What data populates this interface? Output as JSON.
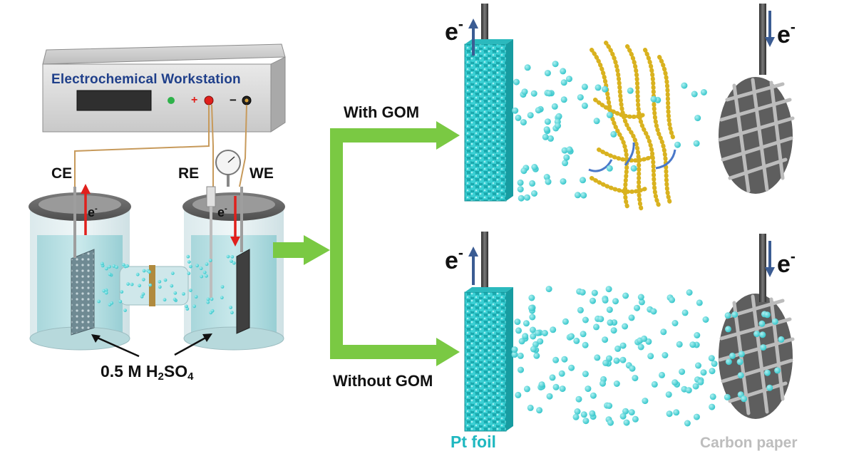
{
  "colors": {
    "ion": "#3ad0d4",
    "pt_foil": "#27c2c6",
    "graphene_oxide": "#d9b21f",
    "arrow_green": "#7ac943",
    "electron_arrow_blue": "#3b5c93",
    "electron_arrow_red": "#e0201c",
    "title_blue": "#1f3f8a"
  },
  "workstation": {
    "title": "Electrochemical Workstation",
    "plus": "+",
    "minus": "−"
  },
  "cell": {
    "ce_label": "CE",
    "re_label": "RE",
    "we_label": "WE",
    "electron_label": "e",
    "electron_superscript": "-",
    "electrolyte_prefix": "0.5 M H",
    "electrolyte_sub1": "2",
    "electrolyte_mid": "SO",
    "electrolyte_sub2": "4"
  },
  "branches": {
    "with_label": "With GOM",
    "without_label": "Without GOM"
  },
  "electron": {
    "symbol": "e",
    "superscript": "-"
  },
  "electrodes": {
    "pt_label": "Pt foil",
    "carbon_label": "Carbon paper"
  },
  "icons": [
    "electrochemical-workstation-icon",
    "pressure-gauge-icon",
    "h-cell-icon",
    "pt-foil-icon",
    "carbon-paper-icon",
    "graphene-oxide-membrane-icon",
    "proton-icon"
  ]
}
